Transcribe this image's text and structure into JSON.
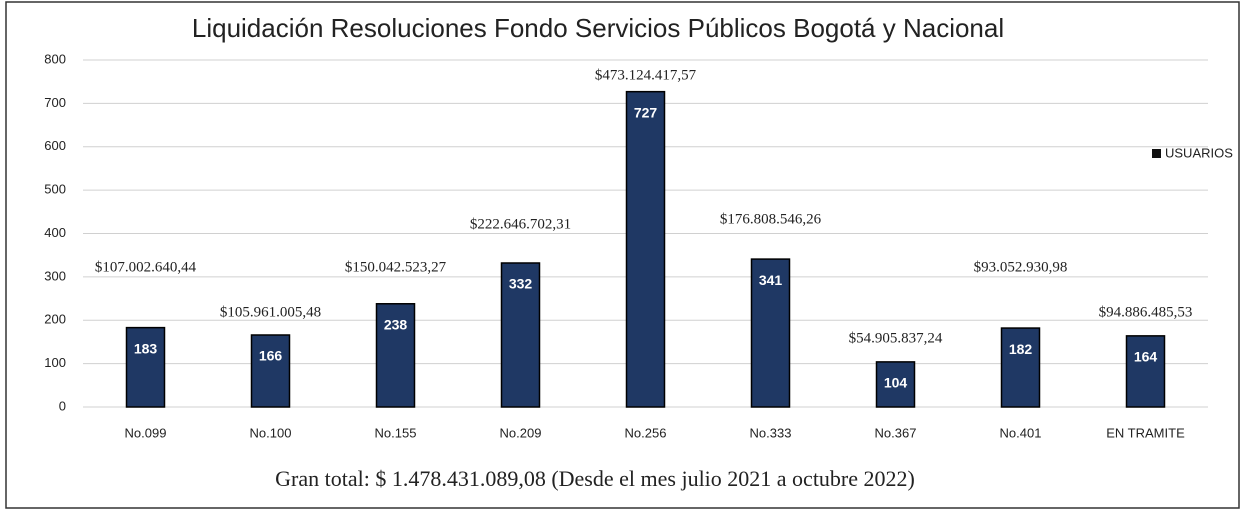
{
  "chart_data": {
    "type": "bar",
    "title": "Liquidación Resoluciones Fondo Servicios Públicos Bogotá y Nacional",
    "categories": [
      "No.099",
      "No.100",
      "No.155",
      "No.209",
      "No.256",
      "No.333",
      "No.367",
      "No.401",
      "EN TRAMITE"
    ],
    "series": [
      {
        "name": "USUARIOS",
        "color": "#1f3864",
        "values": [
          183,
          166,
          238,
          332,
          727,
          341,
          104,
          182,
          164
        ]
      }
    ],
    "annotations": [
      "$107.002.640,44",
      "$105.961.005,48",
      "$150.042.523,27",
      "$222.646.702,31",
      "$473.124.417,57",
      "$176.808.546,26",
      "$54.905.837,24",
      "$93.052.930,98",
      "$94.886.485,53"
    ],
    "ylim": [
      0,
      800
    ],
    "yticks": [
      0,
      100,
      200,
      300,
      400,
      500,
      600,
      700,
      800
    ],
    "grid": true,
    "legend": "right",
    "caption": "Gran total: $ 1.478.431.089,08 (Desde el mes julio 2021 a octubre 2022)"
  }
}
